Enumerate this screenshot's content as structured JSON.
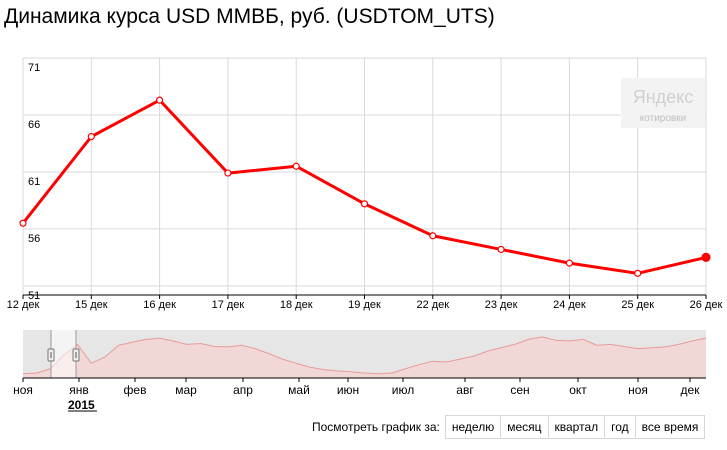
{
  "title": "Динамика курса USD ММВБ, руб. (USDTOM_UTS)",
  "watermark": {
    "brand": "Яндекс",
    "sub": "котировки"
  },
  "colors": {
    "series": "#ff0000",
    "grid": "#d9d9d9",
    "axis": "#000000",
    "nav_fill": "#f7d0d0",
    "nav_line": "#e89b9b",
    "nav_shade": "#e6e6e6"
  },
  "chart_data": {
    "type": "line",
    "title": "Динамика курса USD ММВБ, руб. (USDTOM_UTS)",
    "categories": [
      "12 дек",
      "15 дек",
      "16 дек",
      "17 дек",
      "18 дек",
      "19 дек",
      "22 дек",
      "23 дек",
      "24 дек",
      "25 дек",
      "26 дек"
    ],
    "series": [
      {
        "values": [
          56.5,
          64.1,
          67.3,
          60.9,
          61.5,
          58.2,
          55.4,
          54.2,
          53.0,
          52.1,
          53.5
        ]
      }
    ],
    "yticks": [
      "71",
      "66",
      "61",
      "56",
      "51"
    ],
    "ylim": [
      50.2,
      71
    ],
    "grid": true
  },
  "navigator": {
    "months": [
      "ноя",
      "янв",
      "фев",
      "мар",
      "апр",
      "май",
      "июн",
      "июл",
      "авг",
      "сен",
      "окт",
      "ноя",
      "дек"
    ],
    "year": "2015",
    "profile": [
      0.1,
      0.12,
      0.22,
      0.55,
      0.8,
      0.35,
      0.5,
      0.78,
      0.85,
      0.92,
      0.95,
      0.88,
      0.8,
      0.82,
      0.75,
      0.74,
      0.78,
      0.7,
      0.58,
      0.45,
      0.35,
      0.26,
      0.2,
      0.17,
      0.15,
      0.12,
      0.1,
      0.12,
      0.22,
      0.32,
      0.4,
      0.38,
      0.45,
      0.52,
      0.64,
      0.72,
      0.8,
      0.92,
      0.98,
      0.9,
      0.88,
      0.92,
      0.78,
      0.8,
      0.75,
      0.7,
      0.72,
      0.74,
      0.8,
      0.88,
      0.95
    ]
  },
  "period": {
    "label": "Посмотреть график за:",
    "buttons": [
      "неделю",
      "месяц",
      "квартал",
      "год",
      "все время"
    ]
  }
}
